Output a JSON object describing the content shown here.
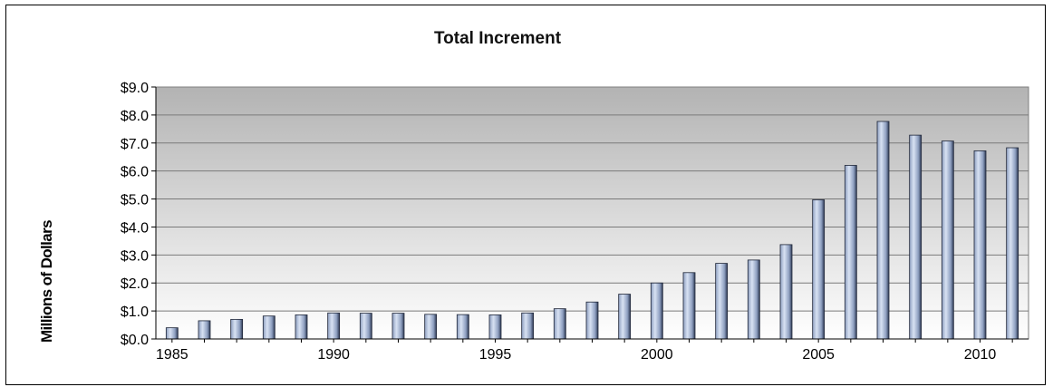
{
  "chart_data": {
    "type": "bar",
    "title": "Total Increment",
    "xlabel": "",
    "ylabel": "Millions of Dollars",
    "categories": [
      "1985",
      "1986",
      "1987",
      "1988",
      "1989",
      "1990",
      "1991",
      "1992",
      "1993",
      "1994",
      "1995",
      "1996",
      "1997",
      "1998",
      "1999",
      "2000",
      "2001",
      "2002",
      "2003",
      "2004",
      "2005",
      "2006",
      "2007",
      "2008",
      "2009",
      "2010",
      "2011"
    ],
    "values": [
      0.4,
      0.65,
      0.7,
      0.82,
      0.86,
      0.93,
      0.92,
      0.92,
      0.88,
      0.87,
      0.86,
      0.93,
      1.08,
      1.32,
      1.6,
      2.0,
      2.37,
      2.7,
      2.82,
      3.37,
      4.97,
      6.2,
      7.77,
      7.28,
      7.07,
      6.72,
      6.83
    ],
    "ylim": [
      0,
      9
    ],
    "yticks": [
      0,
      1,
      2,
      3,
      4,
      5,
      6,
      7,
      8,
      9
    ],
    "ytick_labels": [
      "$0.0",
      "$1.0",
      "$2.0",
      "$3.0",
      "$4.0",
      "$5.0",
      "$6.0",
      "$7.0",
      "$8.0",
      "$9.0"
    ],
    "xtick_labels": [
      "1985",
      "1990",
      "1995",
      "2000",
      "2005",
      "2010"
    ],
    "grid": true,
    "legend": false,
    "colors": {
      "bar_light": "#d8e2f3",
      "bar_mid": "#8e9fc0",
      "bar_dark": "#2e3a55",
      "plot_top": "#b3b3b3",
      "plot_bottom": "#ffffff"
    }
  }
}
